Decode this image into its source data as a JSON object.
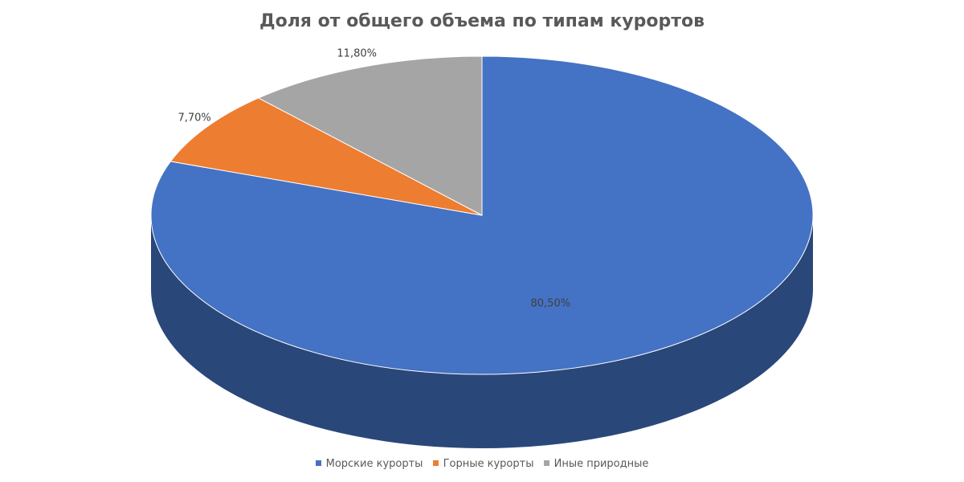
{
  "chart_data": {
    "type": "pie",
    "title": "Доля от общего объема по типам курортов",
    "categories": [
      "Морские курорты",
      "Горные курорты",
      "Иные природные"
    ],
    "values": [
      80.5,
      7.7,
      11.8
    ],
    "data_labels": [
      "80,50%",
      "7,70%",
      "11,80%"
    ],
    "colors": [
      "#4472C4",
      "#ED7D31",
      "#A5A5A5"
    ],
    "legend_position": "bottom",
    "style": "3d"
  }
}
